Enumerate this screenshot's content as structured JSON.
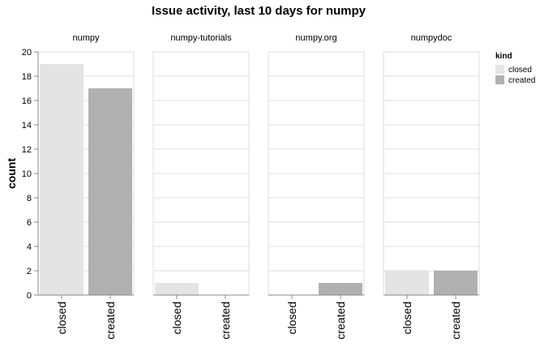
{
  "chart_data": {
    "type": "bar",
    "title": "Issue activity, last 10 days for numpy",
    "xlabel": "",
    "ylabel": "count",
    "ylim": [
      0,
      20
    ],
    "yticks": [
      0,
      2,
      4,
      6,
      8,
      10,
      12,
      14,
      16,
      18,
      20
    ],
    "categories": [
      "closed",
      "created"
    ],
    "grid": true,
    "legend": {
      "title": "kind",
      "position": "right",
      "entries": [
        {
          "name": "closed",
          "color": "#e4e4e4"
        },
        {
          "name": "created",
          "color": "#b0b0b0"
        }
      ]
    },
    "facets": [
      {
        "name": "numpy",
        "values": [
          19,
          17
        ]
      },
      {
        "name": "numpy-tutorials",
        "values": [
          1,
          0
        ]
      },
      {
        "name": "numpy.org",
        "values": [
          0,
          1
        ]
      },
      {
        "name": "numpydoc",
        "values": [
          2,
          2
        ]
      }
    ]
  }
}
